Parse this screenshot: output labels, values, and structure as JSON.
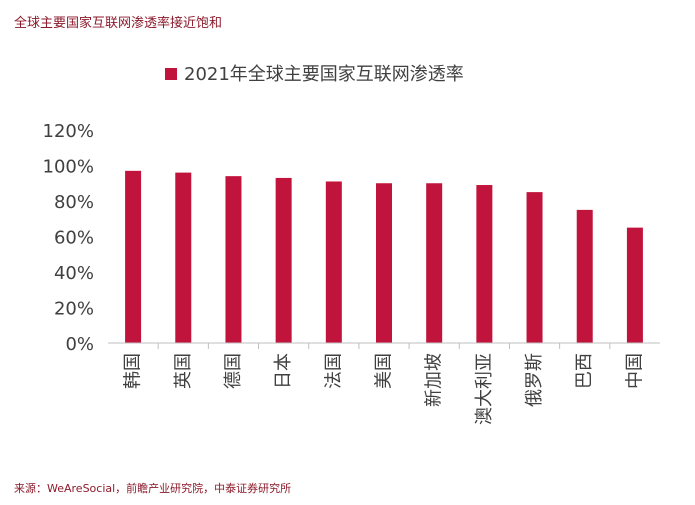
{
  "header": {
    "title": "全球主要国家互联网渗透率接近饱和"
  },
  "footer": {
    "source": "来源：WeAreSocial，前瞻产业研究院，中泰证券研究所"
  },
  "colors": {
    "bar": "#c0143c",
    "axis": "#bfbfbf",
    "text": "#404040"
  },
  "chart_data": {
    "type": "bar",
    "legend": [
      "2021年全球主要国家互联网渗透率"
    ],
    "legend_position": "top",
    "categories": [
      "韩国",
      "英国",
      "德国",
      "日本",
      "法国",
      "美国",
      "新加坡",
      "澳大利亚",
      "俄罗斯",
      "巴西",
      "中国"
    ],
    "series": [
      {
        "name": "2021年全球主要国家互联网渗透率",
        "values": [
          97,
          96,
          94,
          93,
          91,
          90,
          90,
          89,
          85,
          75,
          65
        ]
      }
    ],
    "yticks": [
      "0%",
      "20%",
      "40%",
      "60%",
      "80%",
      "100%",
      "120%"
    ],
    "ylim": [
      0,
      120
    ],
    "grid": false
  }
}
